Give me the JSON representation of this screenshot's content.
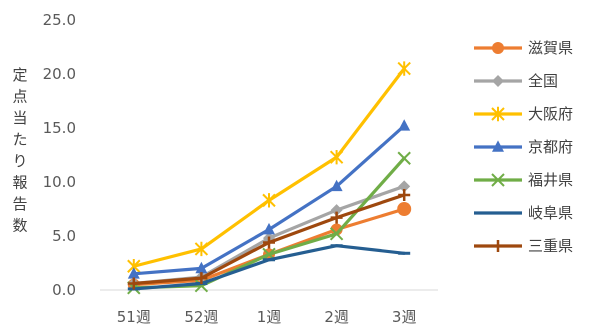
{
  "chart_data": {
    "type": "line",
    "title": "",
    "xlabel": "",
    "ylabel": "定点当たり報告数",
    "ylim": [
      0,
      25
    ],
    "yticks": [
      "0.0",
      "5.0",
      "10.0",
      "15.0",
      "20.0",
      "25.0"
    ],
    "categories": [
      "51週",
      "52週",
      "1週",
      "2週",
      "3週"
    ],
    "grid": false,
    "legend_position": "right",
    "series": [
      {
        "name": "滋賀県",
        "color": "#ED7D31",
        "marker": "circle",
        "values": [
          0.5,
          0.9,
          3.3,
          5.6,
          7.5
        ]
      },
      {
        "name": "全国",
        "color": "#A5A5A5",
        "marker": "diamond",
        "values": [
          0.6,
          1.2,
          4.8,
          7.4,
          9.6
        ]
      },
      {
        "name": "大阪府",
        "color": "#FFC000",
        "marker": "star",
        "values": [
          2.2,
          3.8,
          8.3,
          12.3,
          20.5
        ]
      },
      {
        "name": "京都府",
        "color": "#4472C4",
        "marker": "triangle",
        "values": [
          1.5,
          2.0,
          5.6,
          9.6,
          15.2
        ]
      },
      {
        "name": "福井県",
        "color": "#70AD47",
        "marker": "x",
        "values": [
          0.2,
          0.4,
          3.3,
          5.2,
          12.2
        ]
      },
      {
        "name": "岐阜県",
        "color": "#255E91",
        "marker": "dash",
        "values": [
          0.1,
          0.6,
          2.8,
          4.1,
          3.4
        ]
      },
      {
        "name": "三重県",
        "color": "#9E480E",
        "marker": "plus",
        "values": [
          0.6,
          1.1,
          4.4,
          6.7,
          8.8
        ]
      }
    ]
  }
}
